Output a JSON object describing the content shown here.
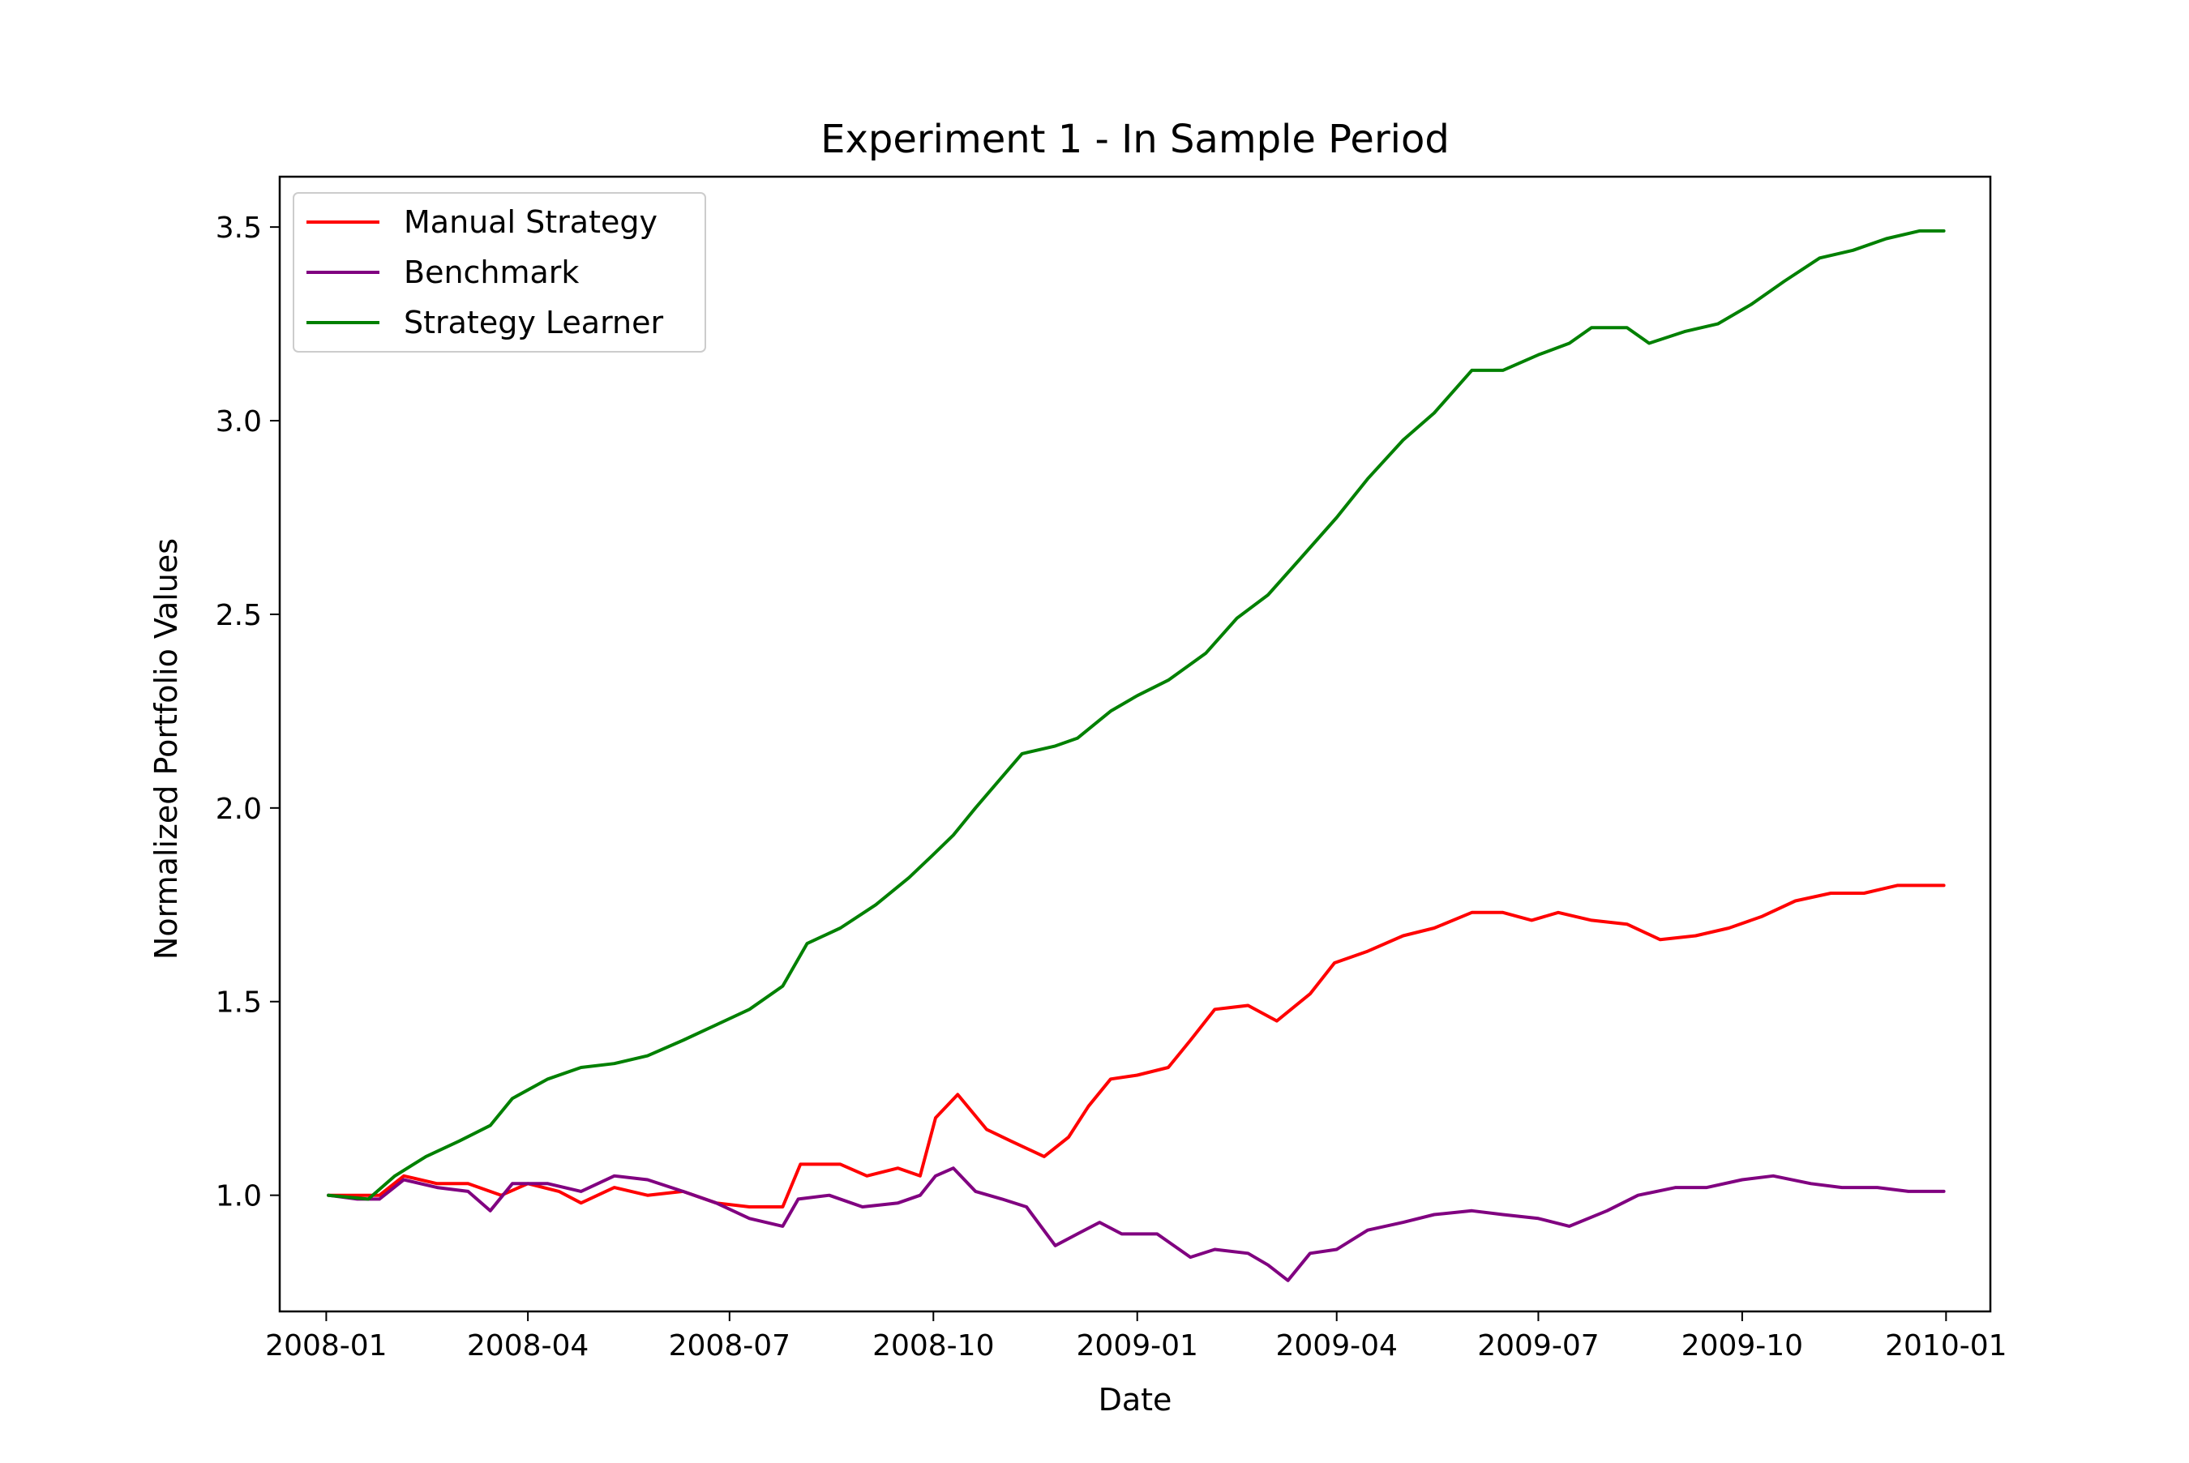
{
  "chart_data": {
    "type": "line",
    "title": "Experiment 1 - In Sample Period",
    "xlabel": "Date",
    "ylabel": "Normalized Portfolio Values",
    "xlim": [
      "2007-12-11",
      "2010-01-21"
    ],
    "ylim": [
      0.7,
      3.63
    ],
    "x_ticks": [
      "2008-01",
      "2008-04",
      "2008-07",
      "2008-10",
      "2009-01",
      "2009-04",
      "2009-07",
      "2009-10",
      "2010-01"
    ],
    "y_ticks": [
      1.0,
      1.5,
      2.0,
      2.5,
      3.0,
      3.5
    ],
    "y_tick_labels": [
      "1.0",
      "1.5",
      "2.0",
      "2.5",
      "3.0",
      "3.5"
    ],
    "legend_position": "top-left",
    "grid": false,
    "series": [
      {
        "name": "Manual Strategy",
        "color": "#ff0000",
        "points": [
          [
            "2008-01-02",
            1.0
          ],
          [
            "2008-01-25",
            1.0
          ],
          [
            "2008-02-05",
            1.05
          ],
          [
            "2008-02-20",
            1.03
          ],
          [
            "2008-03-05",
            1.03
          ],
          [
            "2008-03-20",
            1.0
          ],
          [
            "2008-04-01",
            1.03
          ],
          [
            "2008-04-15",
            1.01
          ],
          [
            "2008-04-25",
            0.98
          ],
          [
            "2008-05-10",
            1.02
          ],
          [
            "2008-05-25",
            1.0
          ],
          [
            "2008-06-10",
            1.01
          ],
          [
            "2008-06-25",
            0.98
          ],
          [
            "2008-07-10",
            0.97
          ],
          [
            "2008-07-25",
            0.97
          ],
          [
            "2008-08-02",
            1.08
          ],
          [
            "2008-08-20",
            1.08
          ],
          [
            "2008-09-01",
            1.05
          ],
          [
            "2008-09-15",
            1.07
          ],
          [
            "2008-09-25",
            1.05
          ],
          [
            "2008-10-02",
            1.2
          ],
          [
            "2008-10-12",
            1.26
          ],
          [
            "2008-10-25",
            1.17
          ],
          [
            "2008-11-05",
            1.14
          ],
          [
            "2008-11-20",
            1.1
          ],
          [
            "2008-12-01",
            1.15
          ],
          [
            "2008-12-10",
            1.23
          ],
          [
            "2008-12-20",
            1.3
          ],
          [
            "2009-01-01",
            1.31
          ],
          [
            "2009-01-15",
            1.33
          ],
          [
            "2009-01-25",
            1.4
          ],
          [
            "2009-02-05",
            1.48
          ],
          [
            "2009-02-20",
            1.49
          ],
          [
            "2009-03-05",
            1.45
          ],
          [
            "2009-03-20",
            1.52
          ],
          [
            "2009-03-31",
            1.6
          ],
          [
            "2009-04-15",
            1.63
          ],
          [
            "2009-05-01",
            1.67
          ],
          [
            "2009-05-15",
            1.69
          ],
          [
            "2009-06-01",
            1.73
          ],
          [
            "2009-06-15",
            1.73
          ],
          [
            "2009-06-28",
            1.71
          ],
          [
            "2009-07-10",
            1.73
          ],
          [
            "2009-07-25",
            1.71
          ],
          [
            "2009-08-10",
            1.7
          ],
          [
            "2009-08-25",
            1.66
          ],
          [
            "2009-09-10",
            1.67
          ],
          [
            "2009-09-25",
            1.69
          ],
          [
            "2009-10-10",
            1.72
          ],
          [
            "2009-10-25",
            1.76
          ],
          [
            "2009-11-10",
            1.78
          ],
          [
            "2009-11-25",
            1.78
          ],
          [
            "2009-12-10",
            1.8
          ],
          [
            "2009-12-31",
            1.8
          ]
        ]
      },
      {
        "name": "Benchmark",
        "color": "#800080",
        "points": [
          [
            "2008-01-02",
            1.0
          ],
          [
            "2008-01-15",
            0.99
          ],
          [
            "2008-01-25",
            0.99
          ],
          [
            "2008-02-05",
            1.04
          ],
          [
            "2008-02-20",
            1.02
          ],
          [
            "2008-03-05",
            1.01
          ],
          [
            "2008-03-15",
            0.96
          ],
          [
            "2008-03-25",
            1.03
          ],
          [
            "2008-04-10",
            1.03
          ],
          [
            "2008-04-25",
            1.01
          ],
          [
            "2008-05-10",
            1.05
          ],
          [
            "2008-05-25",
            1.04
          ],
          [
            "2008-06-10",
            1.01
          ],
          [
            "2008-06-25",
            0.98
          ],
          [
            "2008-07-10",
            0.94
          ],
          [
            "2008-07-25",
            0.92
          ],
          [
            "2008-08-01",
            0.99
          ],
          [
            "2008-08-15",
            1.0
          ],
          [
            "2008-08-30",
            0.97
          ],
          [
            "2008-09-15",
            0.98
          ],
          [
            "2008-09-25",
            1.0
          ],
          [
            "2008-10-02",
            1.05
          ],
          [
            "2008-10-10",
            1.07
          ],
          [
            "2008-10-20",
            1.01
          ],
          [
            "2008-11-01",
            0.99
          ],
          [
            "2008-11-12",
            0.97
          ],
          [
            "2008-11-25",
            0.87
          ],
          [
            "2008-12-05",
            0.9
          ],
          [
            "2008-12-15",
            0.93
          ],
          [
            "2008-12-25",
            0.9
          ],
          [
            "2009-01-10",
            0.9
          ],
          [
            "2009-01-25",
            0.84
          ],
          [
            "2009-02-05",
            0.86
          ],
          [
            "2009-02-20",
            0.85
          ],
          [
            "2009-03-01",
            0.82
          ],
          [
            "2009-03-10",
            0.78
          ],
          [
            "2009-03-20",
            0.85
          ],
          [
            "2009-04-01",
            0.86
          ],
          [
            "2009-04-15",
            0.91
          ],
          [
            "2009-05-01",
            0.93
          ],
          [
            "2009-05-15",
            0.95
          ],
          [
            "2009-06-01",
            0.96
          ],
          [
            "2009-06-15",
            0.95
          ],
          [
            "2009-07-01",
            0.94
          ],
          [
            "2009-07-15",
            0.92
          ],
          [
            "2009-08-01",
            0.96
          ],
          [
            "2009-08-15",
            1.0
          ],
          [
            "2009-09-01",
            1.02
          ],
          [
            "2009-09-15",
            1.02
          ],
          [
            "2009-10-01",
            1.04
          ],
          [
            "2009-10-15",
            1.05
          ],
          [
            "2009-11-01",
            1.03
          ],
          [
            "2009-11-15",
            1.02
          ],
          [
            "2009-12-01",
            1.02
          ],
          [
            "2009-12-15",
            1.01
          ],
          [
            "2009-12-31",
            1.01
          ]
        ]
      },
      {
        "name": "Strategy Learner",
        "color": "#008000",
        "points": [
          [
            "2008-01-02",
            1.0
          ],
          [
            "2008-01-20",
            0.99
          ],
          [
            "2008-02-01",
            1.05
          ],
          [
            "2008-02-15",
            1.1
          ],
          [
            "2008-03-01",
            1.14
          ],
          [
            "2008-03-15",
            1.18
          ],
          [
            "2008-03-25",
            1.25
          ],
          [
            "2008-04-10",
            1.3
          ],
          [
            "2008-04-25",
            1.33
          ],
          [
            "2008-05-10",
            1.34
          ],
          [
            "2008-05-25",
            1.36
          ],
          [
            "2008-06-10",
            1.4
          ],
          [
            "2008-06-25",
            1.44
          ],
          [
            "2008-07-10",
            1.48
          ],
          [
            "2008-07-25",
            1.54
          ],
          [
            "2008-08-05",
            1.65
          ],
          [
            "2008-08-20",
            1.69
          ],
          [
            "2008-09-05",
            1.75
          ],
          [
            "2008-09-20",
            1.82
          ],
          [
            "2008-10-01",
            1.88
          ],
          [
            "2008-10-10",
            1.93
          ],
          [
            "2008-10-20",
            2.0
          ],
          [
            "2008-11-01",
            2.08
          ],
          [
            "2008-11-10",
            2.14
          ],
          [
            "2008-11-25",
            2.16
          ],
          [
            "2008-12-05",
            2.18
          ],
          [
            "2008-12-20",
            2.25
          ],
          [
            "2009-01-01",
            2.29
          ],
          [
            "2009-01-15",
            2.33
          ],
          [
            "2009-02-01",
            2.4
          ],
          [
            "2009-02-15",
            2.49
          ],
          [
            "2009-03-01",
            2.55
          ],
          [
            "2009-03-15",
            2.64
          ],
          [
            "2009-04-01",
            2.75
          ],
          [
            "2009-04-15",
            2.85
          ],
          [
            "2009-05-01",
            2.95
          ],
          [
            "2009-05-15",
            3.02
          ],
          [
            "2009-06-01",
            3.13
          ],
          [
            "2009-06-15",
            3.13
          ],
          [
            "2009-07-01",
            3.17
          ],
          [
            "2009-07-15",
            3.2
          ],
          [
            "2009-07-25",
            3.24
          ],
          [
            "2009-08-10",
            3.24
          ],
          [
            "2009-08-20",
            3.2
          ],
          [
            "2009-09-05",
            3.23
          ],
          [
            "2009-09-20",
            3.25
          ],
          [
            "2009-10-05",
            3.3
          ],
          [
            "2009-10-20",
            3.36
          ],
          [
            "2009-11-05",
            3.42
          ],
          [
            "2009-11-20",
            3.44
          ],
          [
            "2009-12-05",
            3.47
          ],
          [
            "2009-12-20",
            3.49
          ],
          [
            "2009-12-31",
            3.49
          ]
        ]
      }
    ]
  }
}
